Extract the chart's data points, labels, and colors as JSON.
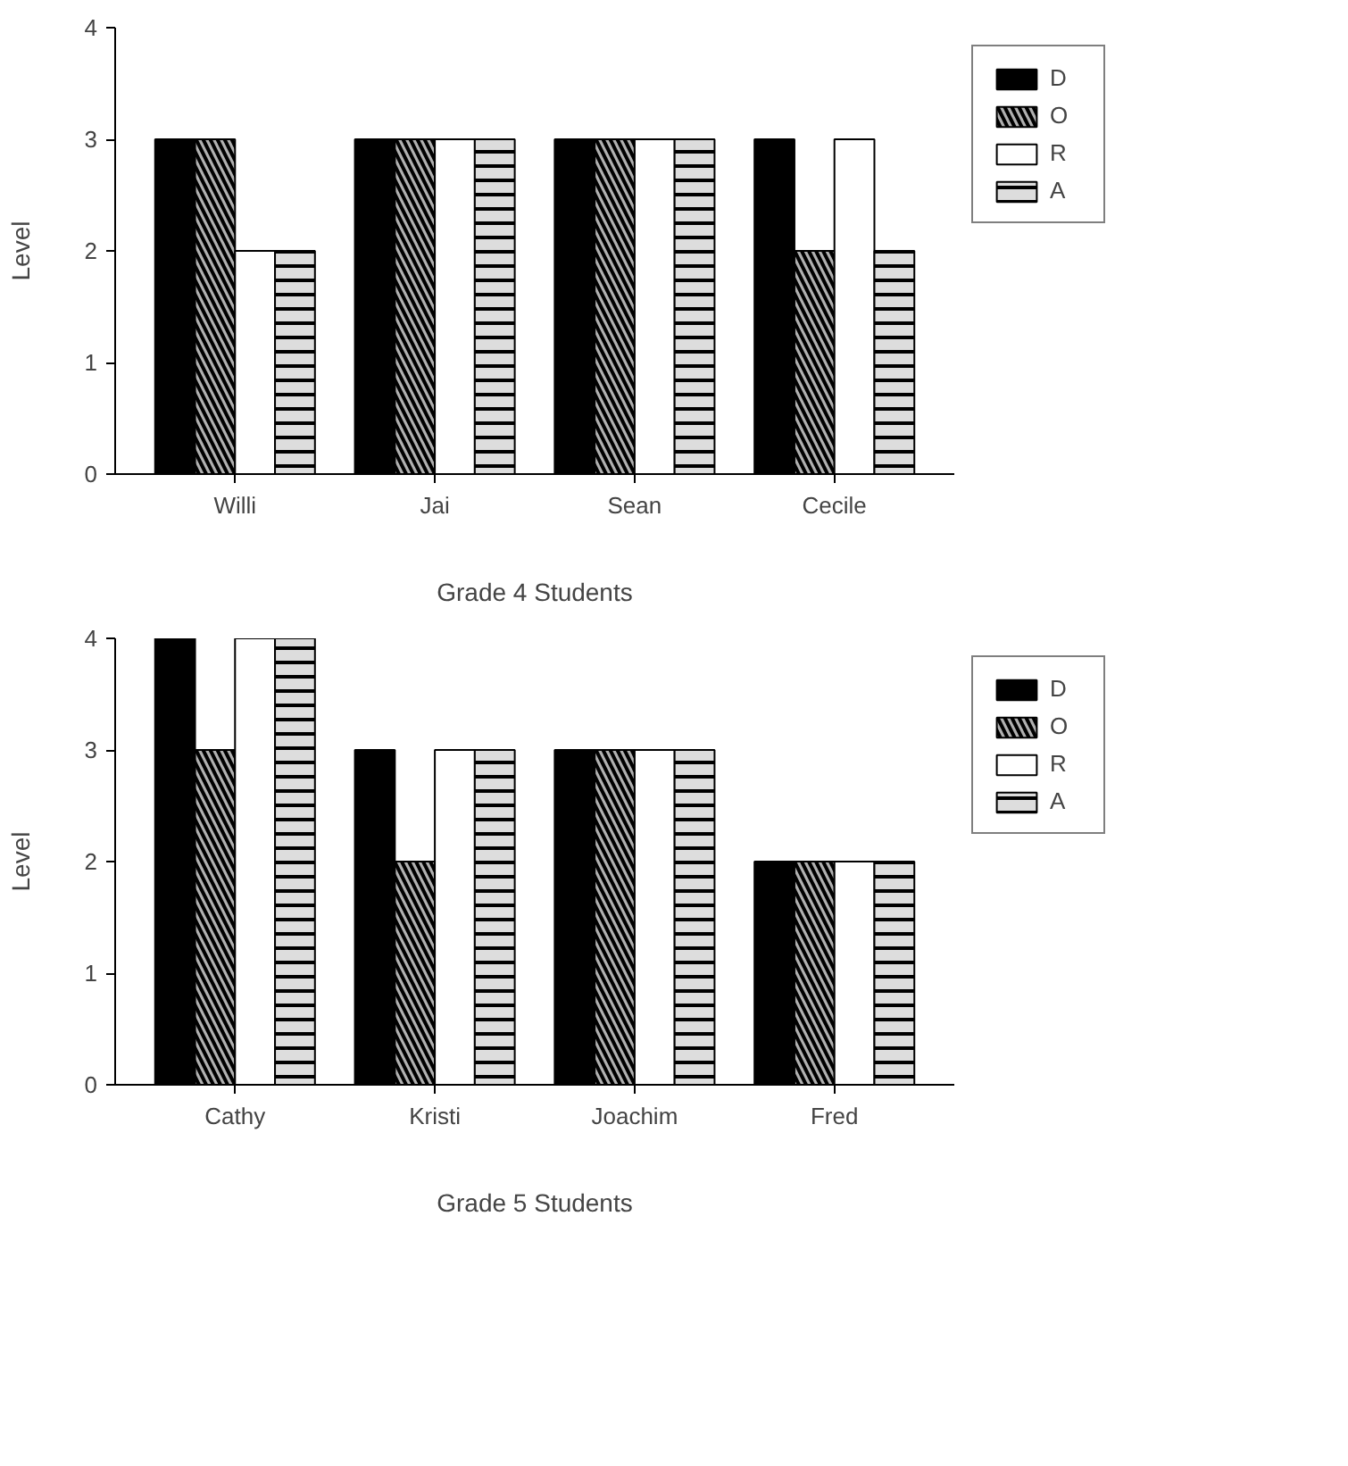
{
  "chart_data": [
    {
      "type": "bar",
      "xlabel": "Grade 4 Students",
      "ylabel": "Level",
      "categories": [
        "Willi",
        "Jai",
        "Sean",
        "Cecile"
      ],
      "ylim": [
        0,
        4
      ],
      "yticks": [
        0,
        1,
        2,
        3,
        4
      ],
      "grid": false,
      "legend": "top right",
      "series": [
        {
          "name": "D",
          "color": "#000000",
          "values": [
            3,
            3,
            3,
            3
          ]
        },
        {
          "name": "O",
          "color": "#b0b0b0",
          "values": [
            3,
            3,
            3,
            2
          ]
        },
        {
          "name": "R",
          "color": "#ffffff",
          "values": [
            2,
            3,
            3,
            3
          ]
        },
        {
          "name": "A",
          "color": "#dddddd",
          "values": [
            2,
            3,
            3,
            2
          ]
        }
      ]
    },
    {
      "type": "bar",
      "xlabel": "Grade 5 Students",
      "ylabel": "Level",
      "categories": [
        "Cathy",
        "Kristi",
        "Joachim",
        "Fred"
      ],
      "ylim": [
        0,
        4
      ],
      "yticks": [
        0,
        1,
        2,
        3,
        4
      ],
      "grid": false,
      "legend": "top right",
      "series": [
        {
          "name": "D",
          "color": "#000000",
          "values": [
            4,
            3,
            3,
            2
          ]
        },
        {
          "name": "O",
          "color": "#b0b0b0",
          "values": [
            3,
            2,
            3,
            2
          ]
        },
        {
          "name": "R",
          "color": "#ffffff",
          "values": [
            4,
            3,
            3,
            2
          ]
        },
        {
          "name": "A",
          "color": "#dddddd",
          "values": [
            4,
            3,
            3,
            2
          ]
        }
      ]
    }
  ]
}
